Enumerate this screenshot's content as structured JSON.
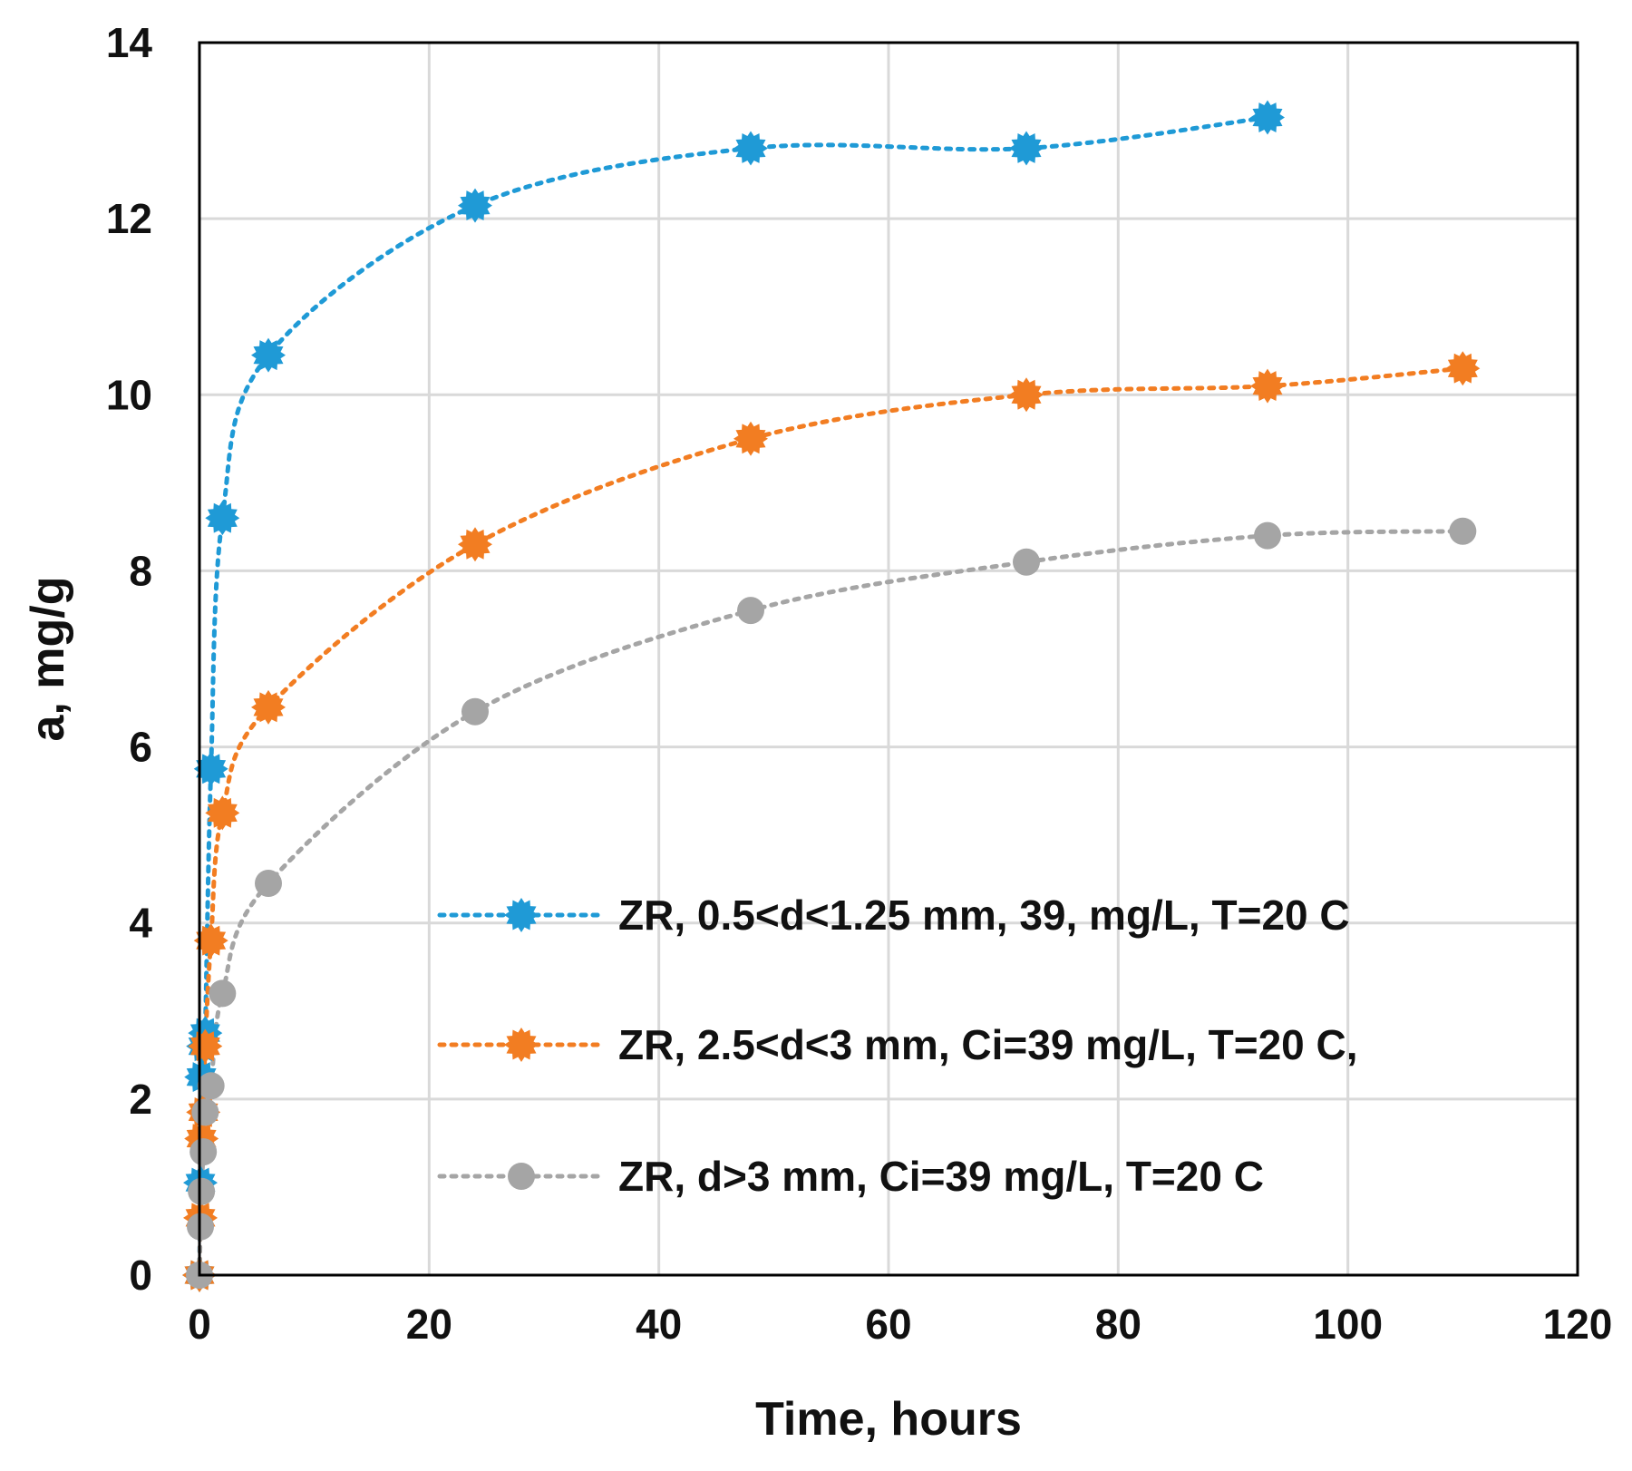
{
  "chart_data": {
    "type": "scatter",
    "title": "",
    "xlabel": "Time, hours",
    "ylabel": "a, mg/g",
    "xlim": [
      0,
      120
    ],
    "ylim": [
      0,
      14
    ],
    "xticks": [
      0,
      20,
      40,
      60,
      80,
      100,
      120
    ],
    "yticks": [
      0,
      2,
      4,
      6,
      8,
      10,
      12,
      14
    ],
    "grid": true,
    "legend_position": "center-right",
    "series": [
      {
        "name": "ZR, 0.5<d<1.25 mm,  39, mg/L, T=20 C",
        "color": "#1f9ad6",
        "marker": "star",
        "line": "dotted",
        "x": [
          0,
          0.08,
          0.17,
          0.33,
          0.5,
          1,
          2,
          6,
          24,
          48,
          72,
          93
        ],
        "y": [
          0,
          1.05,
          2.25,
          2.6,
          2.75,
          5.75,
          8.6,
          10.45,
          12.15,
          12.8,
          12.8,
          13.15
        ]
      },
      {
        "name": "ZR, 2.5<d<3 mm, Ci=39 mg/L, T=20 C,",
        "color": "#f27d22",
        "marker": "star",
        "line": "dotted",
        "x": [
          0,
          0.08,
          0.17,
          0.33,
          0.5,
          1,
          2,
          6,
          24,
          48,
          72,
          93,
          110
        ],
        "y": [
          0,
          0.65,
          1.55,
          1.85,
          2.6,
          3.8,
          5.25,
          6.45,
          8.3,
          9.5,
          10.0,
          10.1,
          10.3
        ]
      },
      {
        "name": "ZR, d>3 mm, Ci=39 mg/L, T=20 C",
        "color": "#a5a5a5",
        "marker": "circle",
        "line": "dotted",
        "x": [
          0,
          0.08,
          0.17,
          0.33,
          0.5,
          1,
          2,
          6,
          24,
          48,
          72,
          93,
          110
        ],
        "y": [
          0,
          0.55,
          0.95,
          1.4,
          1.85,
          2.15,
          3.2,
          4.45,
          6.4,
          7.55,
          8.1,
          8.4,
          8.45
        ]
      }
    ]
  }
}
